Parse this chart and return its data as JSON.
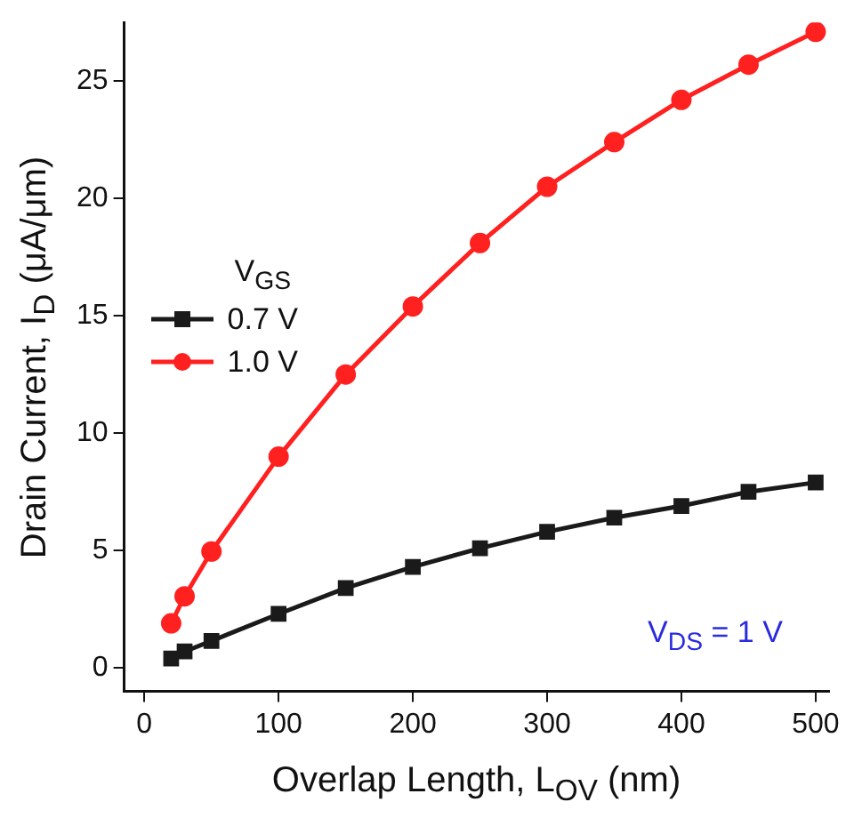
{
  "chart_data": {
    "type": "line",
    "xlabel": "Overlap Length, L$_{OV}$ (nm)",
    "ylabel": "Drain Current, I$_{D}$ (μA/μm)",
    "legend_title": "V$_{GS}$",
    "annotations": [
      "V$_{DS}$ = 1 V"
    ],
    "x": [
      20,
      30,
      50,
      100,
      150,
      200,
      250,
      300,
      350,
      400,
      450,
      500
    ],
    "series": [
      {
        "name": "0.7 V",
        "color": "#1a1a1a",
        "marker": "square",
        "values": [
          0.4,
          0.7,
          1.15,
          2.3,
          3.4,
          4.3,
          5.1,
          5.8,
          6.4,
          6.9,
          7.5,
          7.9
        ]
      },
      {
        "name": "1.0 V",
        "color": "#ff2020",
        "marker": "circle",
        "values": [
          1.9,
          3.05,
          4.96,
          9.0,
          12.5,
          15.4,
          18.1,
          20.5,
          22.4,
          24.2,
          25.7,
          27.1
        ]
      }
    ],
    "xlim": [
      -15,
      510
    ],
    "xticks": [
      0,
      100,
      200,
      300,
      400,
      500
    ],
    "ylim": [
      -1,
      27.5
    ],
    "yticks": [
      0,
      5,
      10,
      15,
      20,
      25
    ],
    "grid": false,
    "legend": "top left",
    "line_style": "solid"
  }
}
